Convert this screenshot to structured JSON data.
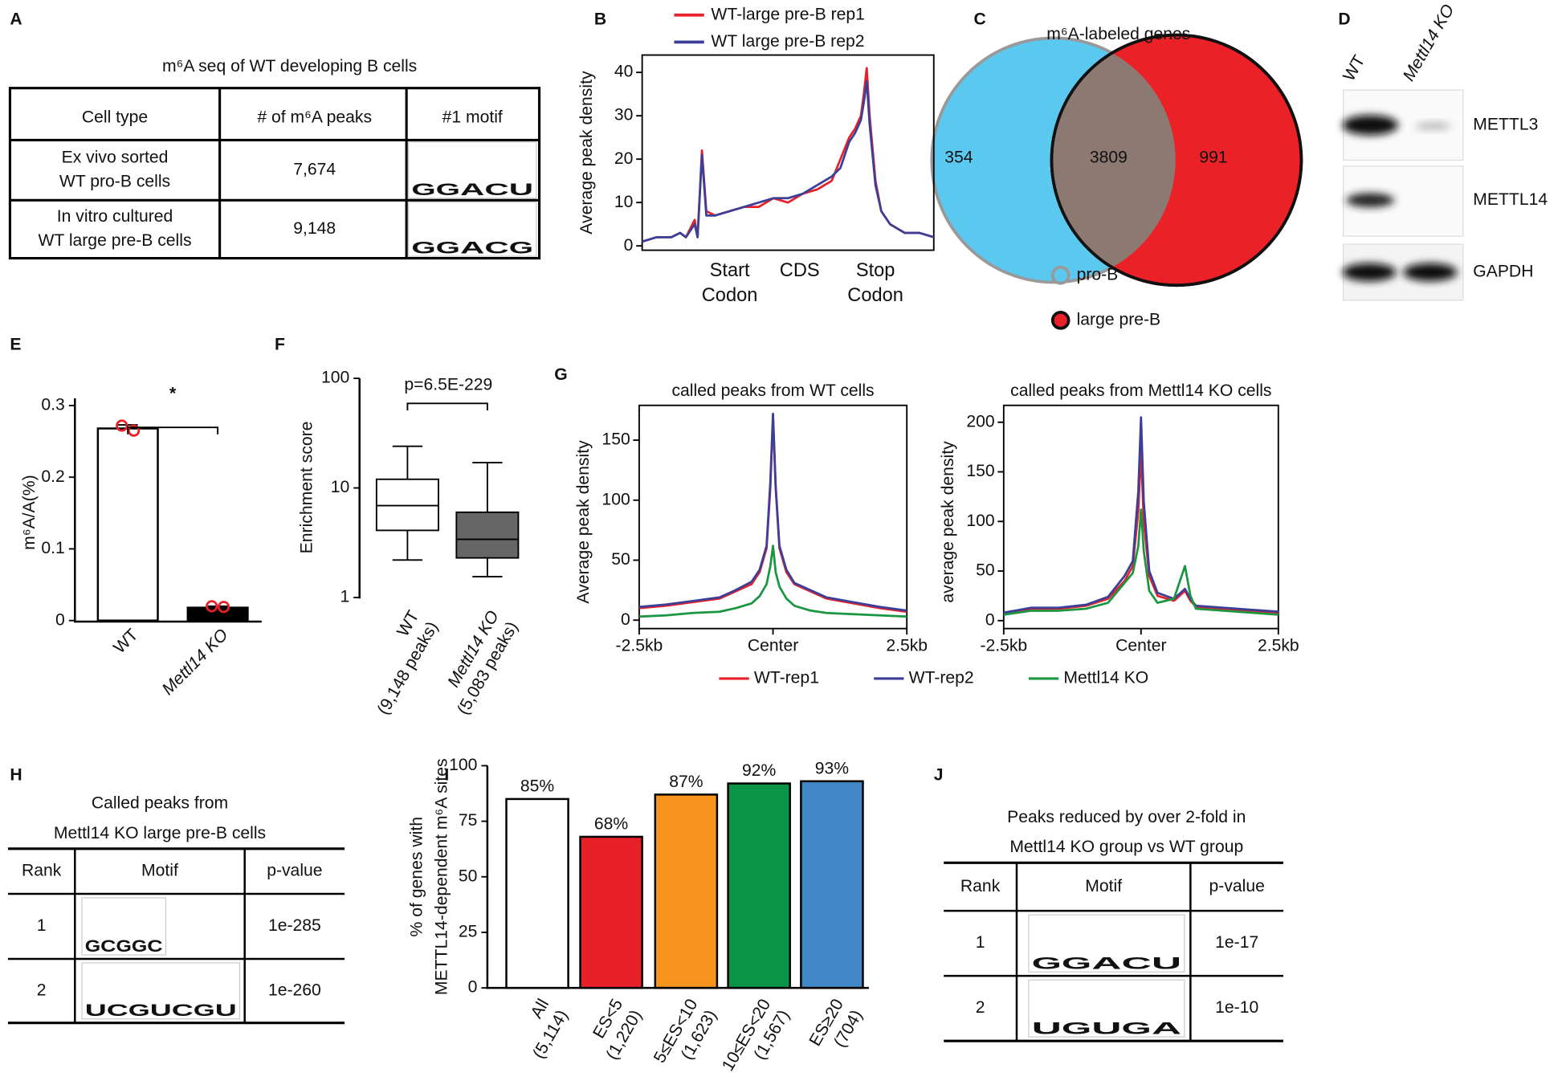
{
  "panel_labels": [
    "A",
    "B",
    "C",
    "D",
    "E",
    "F",
    "G",
    "H",
    "I",
    "J"
  ],
  "panel_a": {
    "title": "m⁶A seq of WT developing B cells",
    "header": [
      "Cell type",
      "# of m⁶A peaks",
      "#1 motif"
    ],
    "rows": [
      {
        "cell_type": [
          "Ex vivo sorted",
          "WT pro-B cells"
        ],
        "peaks": "7,674",
        "motif": [
          "G",
          "G",
          "A",
          "C",
          "U"
        ]
      },
      {
        "cell_type": [
          "In vitro cultured",
          "WT large pre-B cells"
        ],
        "peaks": "9,148",
        "motif": [
          "G",
          "G",
          "A",
          "C",
          "G"
        ]
      }
    ]
  },
  "panel_c": {
    "title": "m⁶A-labeled genes",
    "counts": [
      354,
      3809,
      991
    ],
    "legend": [
      "pro-B",
      "large pre-B"
    ]
  },
  "panel_d": {
    "lanes": [
      "WT",
      "Mettl14 KO"
    ],
    "proteins": [
      "METTL3",
      "METTL14",
      "GAPDH"
    ]
  },
  "panel_h": {
    "title": [
      "Called peaks from",
      "Mettl14 KO large pre-B cells"
    ],
    "header": [
      "Rank",
      "Motif",
      "p-value"
    ],
    "rows": [
      {
        "rank": "1",
        "motif": [
          "G",
          "C",
          "G",
          "G",
          "C"
        ],
        "p": "1e-285"
      },
      {
        "rank": "2",
        "motif": [
          "U",
          "C",
          "G",
          "U",
          "C",
          "G",
          "U"
        ],
        "p": "1e-260"
      }
    ]
  },
  "panel_j": {
    "title": [
      "Peaks reduced by over 2-fold in",
      "Mettl14 KO group vs WT group"
    ],
    "header": [
      "Rank",
      "Motif",
      "p-value"
    ],
    "rows": [
      {
        "rank": "1",
        "motif": [
          "G",
          "G",
          "A",
          "C",
          "U"
        ],
        "p": "1e-17"
      },
      {
        "rank": "2",
        "motif": [
          "U",
          "G",
          "U",
          "G",
          "A"
        ],
        "p": "1e-10"
      }
    ]
  },
  "chart_data": [
    {
      "type": "line",
      "ylabel": "Average peak density",
      "xlim": [
        0,
        100
      ],
      "xticks": [
        {
          "value": 30,
          "label": "Start Codon"
        },
        {
          "value": 54,
          "label": "CDS"
        },
        {
          "value": 80,
          "label": "Stop Codon"
        }
      ],
      "ylim": [
        -1,
        44
      ],
      "yticks": [
        0,
        10,
        20,
        30,
        40
      ],
      "x": [
        0,
        5,
        10,
        13,
        15,
        18,
        19,
        20.5,
        22,
        25,
        30,
        35,
        40,
        45,
        50,
        55,
        60,
        65,
        68,
        71,
        73,
        75,
        76,
        77,
        78,
        80,
        82,
        85,
        90,
        95,
        100
      ],
      "series": [
        {
          "name": "WT-large pre-B rep1",
          "color": "#e8202a",
          "values": [
            1,
            2,
            2,
            3,
            2,
            6,
            2,
            22,
            8,
            7,
            8,
            9,
            9,
            11,
            10,
            12,
            13,
            15,
            20,
            25,
            27,
            30,
            35,
            41,
            30,
            15,
            8,
            5,
            3,
            3,
            2
          ]
        },
        {
          "name": "WT large pre-B rep2",
          "color": "#3b3f98",
          "values": [
            1,
            2,
            2,
            3,
            2,
            5,
            2,
            21,
            7,
            7,
            8,
            9,
            10,
            11,
            11,
            12,
            14,
            16,
            18,
            24,
            26,
            29,
            33,
            38,
            28,
            14,
            8,
            5,
            3,
            3,
            2
          ]
        }
      ]
    },
    {
      "type": "bar",
      "ylabel": "m⁶A/A(%)",
      "categories": [
        "WT",
        "Mettl14 KO"
      ],
      "values": [
        0.268,
        0.018
      ],
      "errors": [
        0.005,
        0.002
      ],
      "colors": [
        "#ffffff",
        "#000000"
      ],
      "points": [
        [
          0.272,
          0.265
        ],
        [
          0.02,
          0.019
        ]
      ],
      "point_color": "#e8202a",
      "annotation": "*",
      "ylim": [
        0,
        0.31
      ],
      "yticks": [
        0,
        0.1,
        0.2,
        0.3
      ]
    },
    {
      "type": "box",
      "ylabel": "Enrichment score",
      "log_scale": true,
      "categories": [
        "WT",
        "Mettl14 KO"
      ],
      "sublabels": [
        "(9,148 peaks)",
        "(5,083 peaks)"
      ],
      "colors": [
        "#ffffff",
        "#666666"
      ],
      "stats": [
        {
          "whisker_low": 2.2,
          "q1": 4.1,
          "median": 6.9,
          "q3": 12,
          "whisker_high": 24
        },
        {
          "whisker_low": 1.55,
          "q1": 2.3,
          "median": 3.4,
          "q3": 6,
          "whisker_high": 17
        }
      ],
      "annotation": "p=6.5E-229",
      "ylim": [
        1,
        100
      ],
      "yticks": [
        1,
        10,
        100
      ]
    },
    {
      "type": "line",
      "title": "called peaks from WT cells",
      "ylabel": "Average peak density",
      "xlim": [
        -2.5,
        2.5
      ],
      "xticks": [
        {
          "value": -2.5,
          "label": "-2.5kb"
        },
        {
          "value": 0,
          "label": "Center"
        },
        {
          "value": 2.5,
          "label": "2.5kb"
        }
      ],
      "ylim": [
        -7,
        179
      ],
      "yticks": [
        0,
        50,
        100,
        150
      ],
      "x": [
        -2.5,
        -2,
        -1.5,
        -1,
        -0.7,
        -0.4,
        -0.25,
        -0.12,
        -0.05,
        0,
        0.05,
        0.12,
        0.25,
        0.4,
        0.7,
        1,
        1.5,
        2,
        2.5
      ],
      "series": [
        {
          "name": "WT-rep1",
          "color": "#e8202a",
          "values": [
            10,
            12,
            15,
            18,
            24,
            30,
            40,
            60,
            110,
            170,
            110,
            60,
            40,
            30,
            24,
            18,
            14,
            10,
            7
          ]
        },
        {
          "name": "WT-rep2",
          "color": "#3b3f98",
          "values": [
            11,
            13,
            16,
            19,
            25,
            32,
            42,
            62,
            115,
            172,
            112,
            62,
            42,
            31,
            25,
            19,
            15,
            11,
            8
          ]
        },
        {
          "name": "Mettl14 KO",
          "color": "#1a9641",
          "values": [
            3,
            4,
            6,
            7,
            10,
            14,
            20,
            30,
            45,
            62,
            40,
            28,
            18,
            12,
            8,
            6,
            5,
            4,
            3
          ]
        }
      ]
    },
    {
      "type": "line",
      "title": "called peaks from Mettl14 KO cells",
      "ylabel": "average peak density",
      "xlim": [
        -2.5,
        2.5
      ],
      "xticks": [
        {
          "value": -2.5,
          "label": "-2.5kb"
        },
        {
          "value": 0,
          "label": "Center"
        },
        {
          "value": 2.5,
          "label": "2.5kb"
        }
      ],
      "ylim": [
        -8,
        217
      ],
      "yticks": [
        0,
        50,
        100,
        150,
        200
      ],
      "x": [
        -2.5,
        -2,
        -1.5,
        -1,
        -0.6,
        -0.3,
        -0.15,
        -0.05,
        0,
        0.05,
        0.15,
        0.3,
        0.6,
        0.8,
        0.9,
        1,
        1.5,
        2,
        2.5
      ],
      "series": [
        {
          "color": "#e8202a",
          "values": [
            8,
            12,
            12,
            15,
            22,
            40,
            55,
            110,
            172,
            100,
            45,
            25,
            20,
            30,
            20,
            14,
            12,
            10,
            8
          ]
        },
        {
          "color": "#3b3f98",
          "values": [
            8,
            13,
            13,
            16,
            24,
            45,
            60,
            130,
            205,
            120,
            50,
            28,
            22,
            32,
            22,
            15,
            13,
            11,
            9
          ]
        },
        {
          "color": "#1a9641",
          "values": [
            6,
            10,
            10,
            12,
            18,
            38,
            48,
            75,
            112,
            70,
            30,
            18,
            22,
            55,
            25,
            12,
            10,
            8,
            6
          ]
        }
      ]
    },
    {
      "type": "bar",
      "ylabel": [
        "% of genes with",
        "METTL14-dependent m⁶A sites"
      ],
      "categories": [
        "All",
        "ES<5",
        "5≤ES<10",
        "10≤ES<20",
        "ES≥20"
      ],
      "sublabels": [
        "(5,114)",
        "(1,220)",
        "(1,623)",
        "(1,567)",
        "(704)"
      ],
      "values": [
        85,
        68,
        87,
        92,
        93
      ],
      "value_labels": [
        "85%",
        "68%",
        "87%",
        "92%",
        "93%"
      ],
      "colors": [
        "#ffffff",
        "#e8202a",
        "#f7941d",
        "#0a9447",
        "#3f88c5"
      ],
      "label_colors": [
        "#000000",
        "#e8202a",
        "#f7941d",
        "#0a9447",
        "#3f88c5"
      ],
      "ylim": [
        0,
        100
      ],
      "yticks": [
        0,
        25,
        50,
        75,
        100
      ]
    }
  ]
}
